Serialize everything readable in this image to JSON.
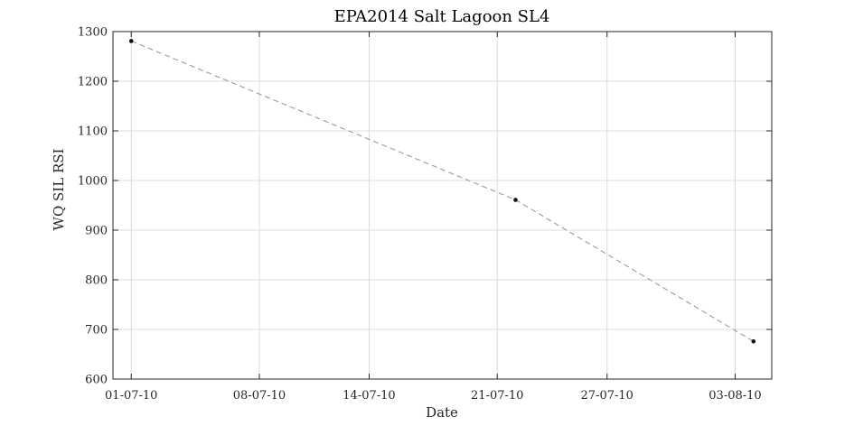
{
  "chart_data": {
    "type": "line",
    "title": "EPA2014 Salt Lagoon SL4",
    "xlabel": "Date",
    "ylabel": "WQ SIL RSI",
    "x_ticks": [
      "01-07-10",
      "08-07-10",
      "14-07-10",
      "21-07-10",
      "27-07-10",
      "03-08-10"
    ],
    "y_ticks": [
      "600",
      "700",
      "800",
      "900",
      "1000",
      "1100",
      "1200",
      "1300"
    ],
    "xlim": [
      "2010-06-30",
      "2010-08-05"
    ],
    "ylim": [
      600,
      1300
    ],
    "grid": true,
    "series": [
      {
        "x": [
          "2010-07-01",
          "2010-07-22",
          "2010-08-04"
        ],
        "y": [
          1281,
          961,
          676
        ],
        "line_color": "#9a9a9a",
        "line_style": "dashed",
        "marker_color": "#111111"
      }
    ]
  }
}
